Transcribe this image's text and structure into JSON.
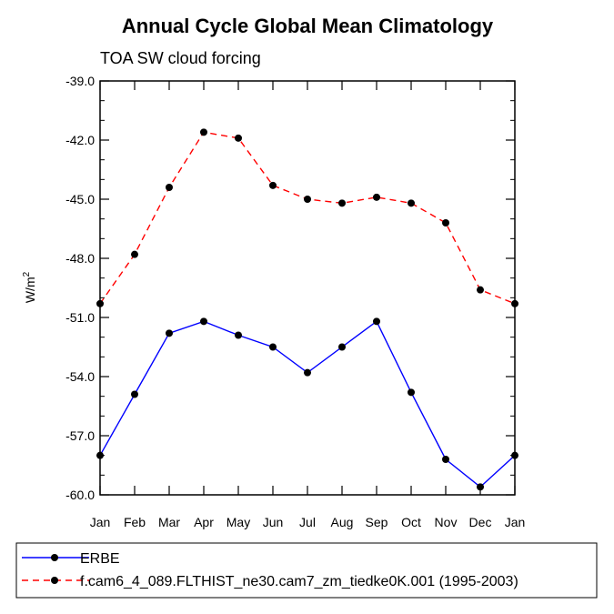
{
  "chart_data": {
    "type": "line",
    "title": "Annual Cycle Global Mean Climatology",
    "subtitle": "TOA SW cloud forcing",
    "ylabel": "W/m",
    "ylabel_sup": "2",
    "xlabel": "",
    "categories": [
      "Jan",
      "Feb",
      "Mar",
      "Apr",
      "May",
      "Jun",
      "Jul",
      "Aug",
      "Sep",
      "Oct",
      "Nov",
      "Dec",
      "Jan"
    ],
    "ylim": [
      -60.0,
      -39.0
    ],
    "yticks": [
      "-39.0",
      "-42.0",
      "-45.0",
      "-48.0",
      "-51.0",
      "-54.0",
      "-57.0",
      "-60.0"
    ],
    "series": [
      {
        "name": "ERBE",
        "color": "#0000ff",
        "dash": "solid",
        "values": [
          -58.0,
          -54.9,
          -51.8,
          -51.2,
          -51.9,
          -52.5,
          -53.8,
          -52.5,
          -51.2,
          -54.8,
          -58.2,
          -59.6,
          -58.0
        ]
      },
      {
        "name": "f.cam6_4_089.FLTHIST_ne30.cam7_zm_tiedke0K.001 (1995-2003)",
        "color": "#ff0000",
        "dash": "dashed",
        "values": [
          -50.3,
          -47.8,
          -44.4,
          -41.6,
          -41.9,
          -44.3,
          -45.0,
          -45.2,
          -44.9,
          -45.2,
          -46.2,
          -49.6,
          -50.3
        ]
      }
    ]
  }
}
